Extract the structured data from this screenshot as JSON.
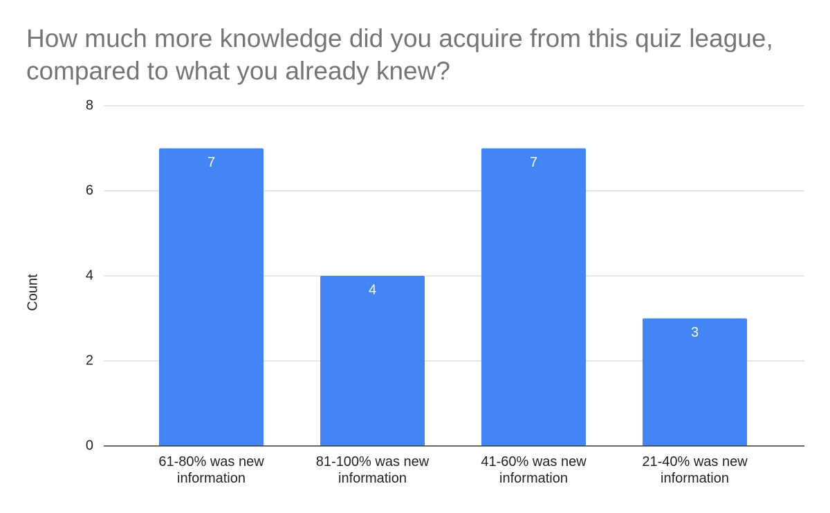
{
  "chart_data": {
    "type": "bar",
    "title": "How much more knowledge did you acquire from this quiz league, compared to what you already knew?",
    "y_label": "Count",
    "categories": [
      "61-80% was new information",
      "81-100% was new information",
      "41-60% was new information",
      "21-40% was new information"
    ],
    "values": [
      7,
      4,
      7,
      3
    ],
    "color": "#4285f4",
    "ylim": [
      0,
      8
    ],
    "yticks": [
      0,
      2,
      4,
      6,
      8
    ],
    "grid": true,
    "data_labels": true
  }
}
